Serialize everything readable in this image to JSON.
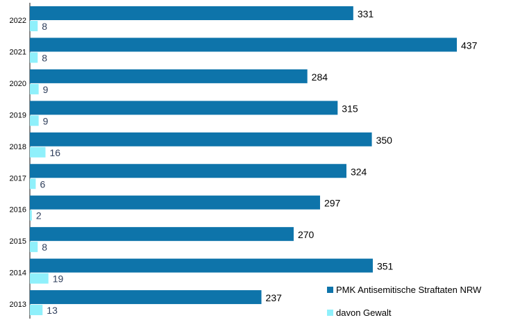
{
  "chart_data": {
    "type": "bar",
    "orientation": "horizontal",
    "categories": [
      "2022",
      "2021",
      "2020",
      "2019",
      "2018",
      "2017",
      "2016",
      "2015",
      "2014",
      "2013"
    ],
    "series": [
      {
        "name": "PMK Antisemitische Straftaten NRW",
        "color": "#0e74aa",
        "values": [
          331,
          437,
          284,
          315,
          350,
          324,
          297,
          270,
          351,
          237
        ]
      },
      {
        "name": "davon Gewalt",
        "color": "#8ff0fb",
        "values": [
          8,
          8,
          9,
          9,
          16,
          6,
          2,
          8,
          19,
          13
        ]
      }
    ],
    "xlim": [
      0,
      437
    ],
    "grid": false,
    "legend_position": "bottom-right",
    "data_labels": true
  }
}
